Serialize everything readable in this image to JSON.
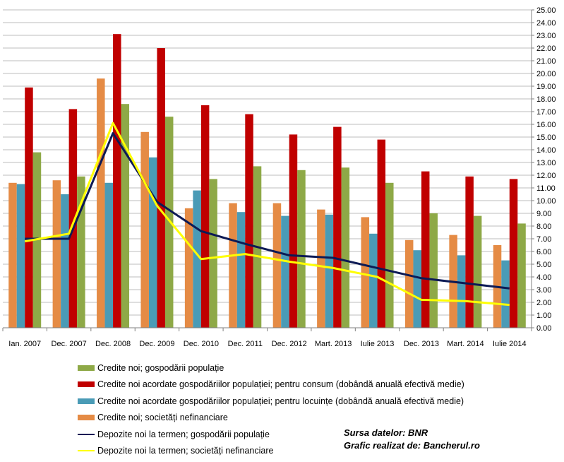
{
  "chart_data": {
    "type": "bar",
    "categories": [
      "Ian. 2007",
      "Dec. 2007",
      "Dec. 2008",
      "Dec. 2009",
      "Dec. 2010",
      "Dec. 2011",
      "Dec. 2012",
      "Mart. 2013",
      "Iulie 2013",
      "Dec. 2013",
      "Mart. 2014",
      "Iulie 2014"
    ],
    "ylim": [
      0,
      25
    ],
    "ytick_step": 1,
    "ytick_labels": [
      "0.00",
      "1.00",
      "2.00",
      "3.00",
      "4.00",
      "5.00",
      "6.00",
      "7.00",
      "8.00",
      "9.00",
      "10.00",
      "11.00",
      "12.00",
      "13.00",
      "14.00",
      "15.00",
      "16.00",
      "17.00",
      "18.00",
      "19.00",
      "20.00",
      "21.00",
      "22.00",
      "23.00",
      "24.00",
      "25.00"
    ],
    "y_axis_side": "right",
    "grid": true,
    "legend_position": "bottom",
    "bar_series": [
      {
        "name": "Credite noi; societăți nefinanciare",
        "color": "#e58b45",
        "values": [
          11.4,
          11.6,
          19.6,
          15.4,
          9.4,
          9.8,
          9.8,
          9.3,
          8.7,
          6.9,
          7.3,
          6.5
        ]
      },
      {
        "name": "Credite noi acordate gospodăriilor populației; pentru locuințe (dobândă anuală  efectivă medie)",
        "color": "#4a9bb6",
        "values": [
          11.3,
          10.5,
          11.4,
          13.4,
          10.8,
          9.1,
          8.8,
          8.9,
          7.4,
          6.1,
          5.7,
          5.3
        ]
      },
      {
        "name": "Credite noi acordate gospodăriilor populației; pentru consum (dobândă anuală  efectivă medie)",
        "color": "#c00000",
        "values": [
          18.9,
          17.2,
          23.1,
          22.0,
          17.5,
          16.8,
          15.2,
          15.8,
          14.8,
          12.3,
          11.9,
          11.7
        ]
      },
      {
        "name": "Credite noi; gospodării populație",
        "color": "#8ea947",
        "values": [
          13.8,
          11.9,
          17.6,
          16.6,
          11.7,
          12.7,
          12.4,
          12.6,
          11.4,
          9.0,
          8.8,
          8.2
        ]
      }
    ],
    "line_series": [
      {
        "name": "Depozite noi la termen;  gospodării populație",
        "color": "#0d1a55",
        "values": [
          7.0,
          7.0,
          15.3,
          9.9,
          7.6,
          6.6,
          5.7,
          5.5,
          4.7,
          3.9,
          3.5,
          3.1
        ]
      },
      {
        "name": "Depozite noi la termen;  societăți nefinanciare",
        "color": "#ffff00",
        "values": [
          6.8,
          7.4,
          16.1,
          9.6,
          5.4,
          5.8,
          5.2,
          4.7,
          4.0,
          2.2,
          2.1,
          1.8
        ]
      }
    ]
  },
  "legend": [
    {
      "label": "Credite noi; gospodării populație",
      "color": "#8ea947",
      "kind": "bar"
    },
    {
      "label": "Credite noi acordate gospodăriilor populației; pentru consum (dobândă anuală  efectivă medie)",
      "color": "#c00000",
      "kind": "bar"
    },
    {
      "label": "Credite noi acordate gospodăriilor populației; pentru locuințe (dobândă anuală  efectivă medie)",
      "color": "#4a9bb6",
      "kind": "bar"
    },
    {
      "label": "Credite noi; societăți nefinanciare",
      "color": "#e58b45",
      "kind": "bar"
    },
    {
      "label": "Depozite noi la termen;  gospodării populație",
      "color": "#0d1a55",
      "kind": "line"
    },
    {
      "label": "Depozite noi la termen;  societăți nefinanciare",
      "color": "#ffff00",
      "kind": "line"
    }
  ],
  "source": {
    "line1": "Sursa datelor: BNR",
    "line2": "Grafic realizat de:  Bancherul.ro"
  }
}
